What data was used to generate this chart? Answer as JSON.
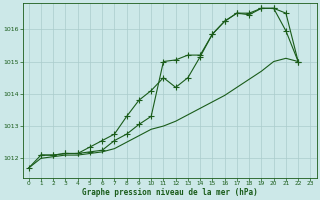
{
  "title": "Graphe pression niveau de la mer (hPa)",
  "bg_color": "#cce8e8",
  "grid_color": "#aacccc",
  "line_color": "#1a5c1a",
  "x_ticks": [
    0,
    1,
    2,
    3,
    4,
    5,
    6,
    7,
    8,
    9,
    10,
    11,
    12,
    13,
    14,
    15,
    16,
    17,
    18,
    19,
    20,
    21,
    22,
    23
  ],
  "y_ticks": [
    1012,
    1013,
    1014,
    1015,
    1016
  ],
  "ylim": [
    1011.4,
    1016.8
  ],
  "xlim": [
    -0.5,
    23.5
  ],
  "line1_x": [
    0,
    1,
    2,
    3,
    4,
    5,
    6,
    7,
    8,
    9,
    10,
    11,
    12,
    13,
    14,
    15,
    16,
    17,
    18,
    19,
    20,
    21,
    22
  ],
  "line1_y": [
    1011.7,
    1012.1,
    1012.1,
    1012.15,
    1012.15,
    1012.2,
    1012.25,
    1012.55,
    1012.75,
    1013.05,
    1013.3,
    1015.0,
    1015.05,
    1015.2,
    1015.2,
    1015.85,
    1016.25,
    1016.5,
    1016.45,
    1016.65,
    1016.65,
    1015.95,
    1015.0
  ],
  "line2_x": [
    1,
    2,
    3,
    4,
    5,
    6,
    7,
    8,
    9,
    10,
    11,
    12,
    13,
    14,
    15,
    16,
    17,
    18,
    19,
    20,
    21,
    22
  ],
  "line2_y": [
    1012.1,
    1012.1,
    1012.15,
    1012.15,
    1012.35,
    1012.55,
    1012.75,
    1013.3,
    1013.8,
    1014.1,
    1014.5,
    1014.2,
    1014.5,
    1015.15,
    1015.85,
    1016.25,
    1016.5,
    1016.5,
    1016.65,
    1016.65,
    1016.5,
    1015.0
  ],
  "line3_x": [
    0,
    1,
    2,
    3,
    4,
    5,
    6,
    7,
    8,
    9,
    10,
    11,
    12,
    13,
    14,
    15,
    16,
    17,
    18,
    19,
    20,
    21,
    22
  ],
  "line3_y": [
    1011.7,
    1012.0,
    1012.05,
    1012.1,
    1012.1,
    1012.15,
    1012.2,
    1012.3,
    1012.5,
    1012.7,
    1012.9,
    1013.0,
    1013.15,
    1013.35,
    1013.55,
    1013.75,
    1013.95,
    1014.2,
    1014.45,
    1014.7,
    1015.0,
    1015.1,
    1015.0
  ]
}
